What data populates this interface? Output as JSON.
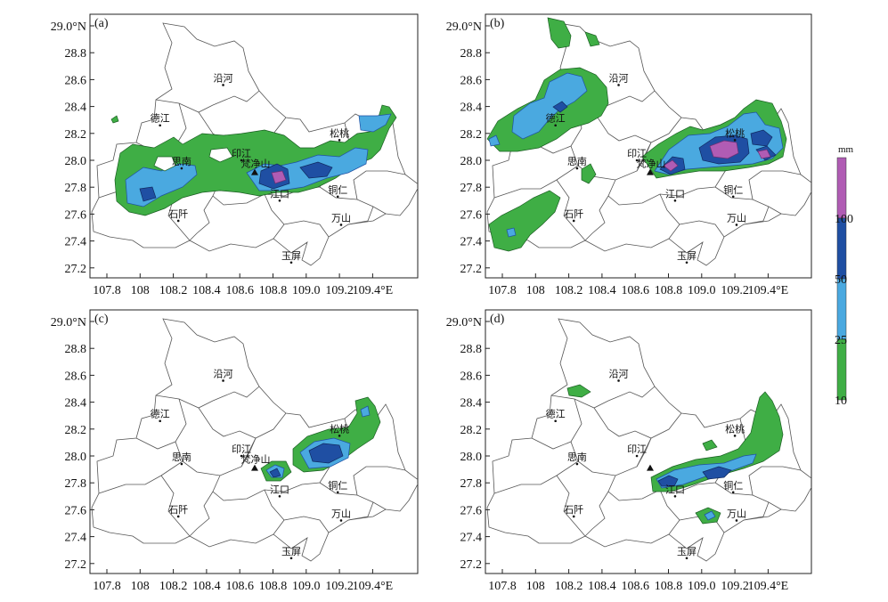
{
  "figure": {
    "lon_ticks": [
      "107.8",
      "108",
      "108.2",
      "108.4",
      "108.6",
      "108.8",
      "109.0",
      "109.2",
      "109.4°E"
    ],
    "lat_ticks": [
      "29.0°N",
      "28.8",
      "28.6",
      "28.4",
      "28.2",
      "28.0",
      "27.8",
      "27.6",
      "27.4",
      "27.2"
    ]
  },
  "colorbar": {
    "unit": "mm",
    "levels": [
      "10",
      "25",
      "50",
      "100"
    ],
    "colors": [
      "#3fae45",
      "#4aa9e0",
      "#1f4fa3",
      "#b05cb4"
    ]
  },
  "cities": [
    {
      "name": "沿河",
      "lon": 108.5,
      "lat": 28.56
    },
    {
      "name": "德江",
      "lon": 108.12,
      "lat": 28.26
    },
    {
      "name": "印江",
      "lon": 108.61,
      "lat": 28.0
    },
    {
      "name": "思南",
      "lon": 108.25,
      "lat": 27.94
    },
    {
      "name": "松桃",
      "lon": 109.2,
      "lat": 28.15
    },
    {
      "name": "江口",
      "lon": 108.84,
      "lat": 27.7
    },
    {
      "name": "铜仁",
      "lon": 109.19,
      "lat": 27.73
    },
    {
      "name": "石阡",
      "lon": 108.23,
      "lat": 27.55
    },
    {
      "name": "万山",
      "lon": 109.21,
      "lat": 27.52
    },
    {
      "name": "玉屏",
      "lon": 108.91,
      "lat": 27.24
    }
  ],
  "station": {
    "name": "梵净山",
    "lon": 108.69,
    "lat": 27.91
  },
  "panels": [
    {
      "label": "(a)"
    },
    {
      "label": "(b)"
    },
    {
      "label": "(c)"
    },
    {
      "label": "(d)"
    }
  ]
}
